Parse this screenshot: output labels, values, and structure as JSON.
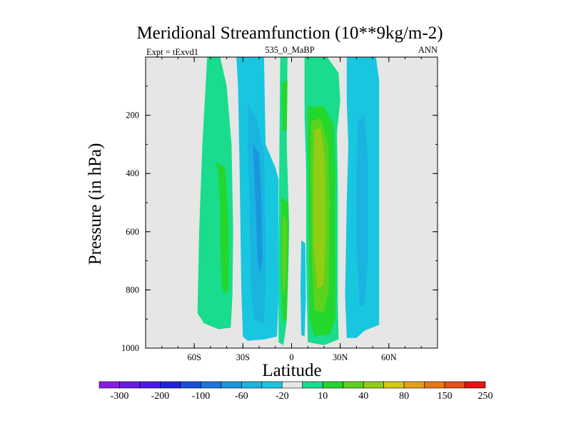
{
  "chart_data": {
    "type": "contour",
    "title": "Meridional Streamfunction (10**9kg/m-2)",
    "left_label": "Expt = tExvd1",
    "center_label": "535_0_MaBP",
    "right_label": "ANN",
    "xlabel": "Latitude",
    "ylabel": "Pressure (in hPa)",
    "xlim": [
      -90,
      90
    ],
    "ylim": [
      1000,
      0
    ],
    "x_ticks": [
      {
        "value": -60,
        "label": "60S"
      },
      {
        "value": -30,
        "label": "30S"
      },
      {
        "value": 0,
        "label": "0"
      },
      {
        "value": 30,
        "label": "30N"
      },
      {
        "value": 60,
        "label": "60N"
      }
    ],
    "y_ticks": [
      {
        "value": 200,
        "label": "200"
      },
      {
        "value": 400,
        "label": "400"
      },
      {
        "value": 600,
        "label": "600"
      },
      {
        "value": 800,
        "label": "800"
      },
      {
        "value": 1000,
        "label": "1000"
      }
    ],
    "colorbar": {
      "colors": [
        "#8c19e6",
        "#6a19e6",
        "#4b19e6",
        "#1e23d7",
        "#1a4fd9",
        "#1a76dc",
        "#1a97dc",
        "#19b4e0",
        "#19c6df",
        "#e6e6e6",
        "#19dc8c",
        "#23d72d",
        "#5ad21e",
        "#91cd14",
        "#d2c814",
        "#e6a014",
        "#e67814",
        "#e65014",
        "#e61414"
      ],
      "labels": [
        "-300",
        "-200",
        "-100",
        "-60",
        "-20",
        "10",
        "40",
        "80",
        "150",
        "250"
      ]
    },
    "fields": [
      {
        "name": "southern-outer-cell",
        "color": "#19dc8c",
        "points": [
          [
            -52,
            0
          ],
          [
            -44,
            0
          ],
          [
            -40,
            100
          ],
          [
            -37,
            300
          ],
          [
            -36,
            600
          ],
          [
            -36.5,
            820
          ],
          [
            -37.5,
            930
          ],
          [
            -45,
            935
          ],
          [
            -54,
            915
          ],
          [
            -58,
            880
          ],
          [
            -57,
            600
          ],
          [
            -55,
            300
          ],
          [
            -53,
            100
          ]
        ]
      },
      {
        "name": "southern-outer-core",
        "color": "#23d72d",
        "points": [
          [
            -47,
            360
          ],
          [
            -41,
            380
          ],
          [
            -39,
            550
          ],
          [
            -38.5,
            710
          ],
          [
            -39,
            800
          ],
          [
            -41,
            815
          ],
          [
            -43,
            790
          ],
          [
            -44,
            650
          ],
          [
            -44,
            550
          ],
          [
            -45,
            400
          ]
        ]
      },
      {
        "name": "southern-negative-cell",
        "color": "#19c6df",
        "points": [
          [
            -34,
            0
          ],
          [
            -17,
            0
          ],
          [
            -16,
            300
          ],
          [
            -10,
            380
          ],
          [
            -8,
            420
          ],
          [
            -8,
            830
          ],
          [
            -9,
            960
          ],
          [
            -17,
            970
          ],
          [
            -27,
            975
          ],
          [
            -30,
            960
          ],
          [
            -31,
            800
          ],
          [
            -32,
            400
          ],
          [
            -33,
            100
          ]
        ]
      },
      {
        "name": "southern-negative-core",
        "color": "#19b4e0",
        "points": [
          [
            -27,
            160
          ],
          [
            -22,
            200
          ],
          [
            -17,
            330
          ],
          [
            -16,
            600
          ],
          [
            -16,
            780
          ],
          [
            -17,
            920
          ],
          [
            -23,
            900
          ],
          [
            -25,
            800
          ],
          [
            -26,
            500
          ],
          [
            -27,
            300
          ]
        ]
      },
      {
        "name": "southern-negative-inner",
        "color": "#1a97dc",
        "points": [
          [
            -24,
            300
          ],
          [
            -20,
            330
          ],
          [
            -18.5,
            500
          ],
          [
            -18,
            700
          ],
          [
            -19.5,
            740
          ],
          [
            -21,
            700
          ],
          [
            -22,
            520
          ],
          [
            -23,
            400
          ]
        ]
      },
      {
        "name": "equatorial-positive-cell",
        "color": "#19dc8c",
        "points": [
          [
            -7,
            0
          ],
          [
            -2.5,
            0
          ],
          [
            -3,
            300
          ],
          [
            -1.5,
            580
          ],
          [
            -2,
            730
          ],
          [
            -3,
            910
          ],
          [
            -5,
            990
          ],
          [
            -8,
            980
          ],
          [
            -8,
            700
          ],
          [
            -7.5,
            300
          ]
        ]
      },
      {
        "name": "equatorial-positive-upper",
        "color": "#23d72d",
        "points": [
          [
            -6,
            90
          ],
          [
            -2.5,
            80
          ],
          [
            -3,
            250
          ],
          [
            -5.5,
            255
          ],
          [
            -6,
            160
          ]
        ]
      },
      {
        "name": "equatorial-positive-lower",
        "color": "#23d72d",
        "points": [
          [
            -6.5,
            480
          ],
          [
            -2,
            500
          ],
          [
            -2,
            650
          ],
          [
            -3,
            900
          ],
          [
            -5.5,
            910
          ],
          [
            -6.5,
            750
          ]
        ]
      },
      {
        "name": "equatorial-positive-core",
        "color": "#5ad21e",
        "points": [
          [
            -5.5,
            540
          ],
          [
            -3,
            560
          ],
          [
            -3,
            700
          ],
          [
            -4,
            800
          ],
          [
            -5.5,
            820
          ],
          [
            -6,
            700
          ]
        ]
      },
      {
        "name": "equatorial-negative-sliver",
        "color": "#19c6df",
        "points": [
          [
            6,
            630
          ],
          [
            8.5,
            640
          ],
          [
            8.8,
            830
          ],
          [
            8,
            960
          ],
          [
            6,
            955
          ],
          [
            5.5,
            800
          ]
        ]
      },
      {
        "name": "northern-positive-cell",
        "color": "#19dc8c",
        "points": [
          [
            8,
            0
          ],
          [
            22,
            0
          ],
          [
            29,
            55
          ],
          [
            30,
            150
          ],
          [
            28,
            260
          ],
          [
            28.5,
            450
          ],
          [
            28.5,
            850
          ],
          [
            29,
            970
          ],
          [
            20,
            990
          ],
          [
            10,
            980
          ],
          [
            9,
            700
          ],
          [
            9,
            400
          ],
          [
            8,
            200
          ]
        ]
      },
      {
        "name": "northern-positive-band",
        "color": "#23d72d",
        "points": [
          [
            10,
            170
          ],
          [
            20,
            170
          ],
          [
            26,
            230
          ],
          [
            27,
            400
          ],
          [
            27,
            900
          ],
          [
            24,
            950
          ],
          [
            14,
            960
          ],
          [
            11,
            900
          ],
          [
            10.5,
            500
          ],
          [
            10,
            300
          ]
        ]
      },
      {
        "name": "northern-positive-mid",
        "color": "#5ad21e",
        "points": [
          [
            12,
            220
          ],
          [
            18,
            210
          ],
          [
            22.5,
            300
          ],
          [
            23.5,
            500
          ],
          [
            23,
            800
          ],
          [
            20,
            880
          ],
          [
            14,
            870
          ],
          [
            12.5,
            700
          ],
          [
            12,
            400
          ]
        ]
      },
      {
        "name": "northern-positive-core",
        "color": "#91cd14",
        "points": [
          [
            14,
            250
          ],
          [
            18,
            245
          ],
          [
            20.5,
            350
          ],
          [
            21,
            600
          ],
          [
            20,
            780
          ],
          [
            16,
            800
          ],
          [
            13.5,
            650
          ],
          [
            13.5,
            400
          ]
        ]
      },
      {
        "name": "northern-negative-cell",
        "color": "#19c6df",
        "points": [
          [
            34,
            0
          ],
          [
            52,
            0
          ],
          [
            54,
            80
          ],
          [
            54,
            600
          ],
          [
            54,
            920
          ],
          [
            45,
            940
          ],
          [
            40,
            965
          ],
          [
            34,
            965
          ],
          [
            33,
            820
          ],
          [
            34,
            500
          ],
          [
            35,
            300
          ],
          [
            34,
            150
          ]
        ]
      },
      {
        "name": "northern-negative-core",
        "color": "#19b4e0",
        "points": [
          [
            41,
            220
          ],
          [
            45,
            200
          ],
          [
            47,
            350
          ],
          [
            47,
            700
          ],
          [
            45,
            850
          ],
          [
            42,
            860
          ],
          [
            40,
            650
          ],
          [
            40,
            400
          ]
        ]
      }
    ]
  }
}
